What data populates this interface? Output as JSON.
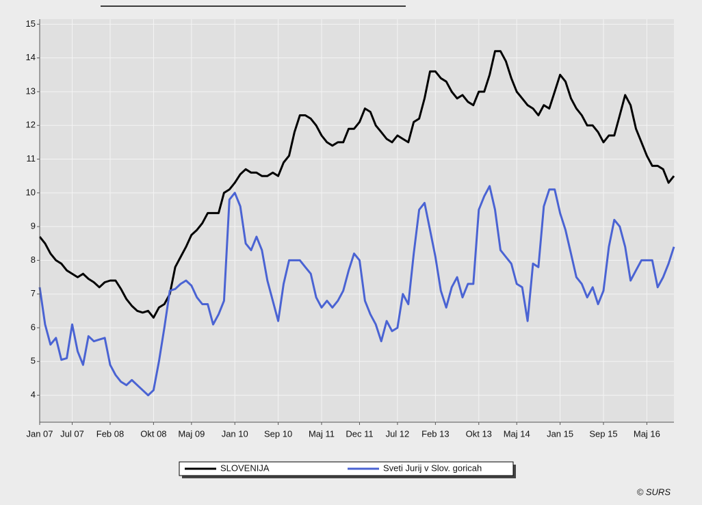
{
  "chart_data": {
    "type": "line",
    "categories": [
      "Jan 07",
      null,
      null,
      null,
      null,
      null,
      "Jul 07",
      null,
      null,
      null,
      null,
      null,
      null,
      "Feb 08",
      null,
      null,
      null,
      null,
      null,
      null,
      null,
      "Okt 08",
      null,
      null,
      null,
      null,
      null,
      null,
      "Maj 09",
      null,
      null,
      null,
      null,
      null,
      null,
      null,
      "Jan 10",
      null,
      null,
      null,
      null,
      null,
      null,
      null,
      "Sep 10",
      null,
      null,
      null,
      null,
      null,
      null,
      null,
      "Maj 11",
      null,
      null,
      null,
      null,
      null,
      null,
      "Dec 11",
      null,
      null,
      null,
      null,
      null,
      null,
      "Jul 12",
      null,
      null,
      null,
      null,
      null,
      null,
      "Feb 13",
      null,
      null,
      null,
      null,
      null,
      null,
      null,
      "Okt 13",
      null,
      null,
      null,
      null,
      null,
      null,
      "Maj 14",
      null,
      null,
      null,
      null,
      null,
      null,
      null,
      "Jan 15",
      null,
      null,
      null,
      null,
      null,
      null,
      null,
      "Sep 15",
      null,
      null,
      null,
      null,
      null,
      null,
      null,
      "Maj 16",
      null,
      null,
      null,
      null,
      null
    ],
    "series": [
      {
        "name": "SLOVENIJA",
        "color": "#000000",
        "values": [
          8.7,
          8.5,
          8.2,
          8.0,
          7.9,
          7.7,
          7.6,
          7.5,
          7.6,
          7.45,
          7.35,
          7.2,
          7.35,
          7.4,
          7.4,
          7.15,
          6.85,
          6.65,
          6.5,
          6.45,
          6.5,
          6.3,
          6.6,
          6.7,
          7.0,
          7.8,
          8.1,
          8.4,
          8.75,
          8.9,
          9.1,
          9.4,
          9.4,
          9.4,
          10.0,
          10.1,
          10.3,
          10.55,
          10.7,
          10.6,
          10.6,
          10.5,
          10.5,
          10.6,
          10.5,
          10.9,
          11.1,
          11.8,
          12.3,
          12.3,
          12.2,
          12.0,
          11.7,
          11.5,
          11.4,
          11.5,
          11.5,
          11.9,
          11.9,
          12.1,
          12.5,
          12.4,
          12.0,
          11.8,
          11.6,
          11.5,
          11.7,
          11.6,
          11.5,
          12.1,
          12.2,
          12.8,
          13.6,
          13.6,
          13.4,
          13.3,
          13.0,
          12.8,
          12.9,
          12.7,
          12.6,
          13.0,
          13.0,
          13.5,
          14.2,
          14.2,
          13.9,
          13.4,
          13.0,
          12.8,
          12.6,
          12.5,
          12.3,
          12.6,
          12.5,
          13.0,
          13.5,
          13.3,
          12.8,
          12.5,
          12.3,
          12.0,
          12.0,
          11.8,
          11.5,
          11.7,
          11.7,
          12.3,
          12.9,
          12.6,
          11.9,
          11.5,
          11.1,
          10.8,
          10.8,
          10.7,
          10.3,
          10.5
        ]
      },
      {
        "name": "Sveti Jurij v Slov. goricah",
        "color": "#4a63d3",
        "values": [
          7.2,
          6.1,
          5.5,
          5.7,
          5.05,
          5.1,
          6.1,
          5.3,
          4.9,
          5.75,
          5.6,
          5.65,
          5.7,
          4.9,
          4.6,
          4.4,
          4.3,
          4.45,
          4.3,
          4.15,
          4.0,
          4.15,
          5.0,
          6.0,
          7.1,
          7.15,
          7.3,
          7.4,
          7.25,
          6.9,
          6.7,
          6.7,
          6.1,
          6.4,
          6.8,
          9.8,
          10.0,
          9.6,
          8.5,
          8.3,
          8.7,
          8.3,
          7.4,
          6.8,
          6.2,
          7.3,
          8.0,
          8.0,
          8.0,
          7.8,
          7.6,
          6.9,
          6.6,
          6.8,
          6.6,
          6.8,
          7.1,
          7.7,
          8.2,
          8.0,
          6.8,
          6.4,
          6.1,
          5.6,
          6.2,
          5.9,
          6.0,
          7.0,
          6.7,
          8.2,
          9.5,
          9.7,
          8.9,
          8.1,
          7.1,
          6.6,
          7.2,
          7.5,
          6.9,
          7.3,
          7.3,
          9.5,
          9.9,
          10.2,
          9.5,
          8.3,
          8.1,
          7.9,
          7.3,
          7.2,
          6.2,
          7.9,
          7.8,
          9.6,
          10.1,
          10.1,
          9.4,
          8.9,
          8.2,
          7.5,
          7.3,
          6.9,
          7.2,
          6.7,
          7.1,
          8.4,
          9.2,
          9.0,
          8.4,
          7.4,
          7.7,
          8.0,
          8.0,
          8.0,
          7.2,
          7.5,
          7.9,
          8.4
        ]
      }
    ],
    "ylim": [
      3.2,
      15.15
    ],
    "yticks": [
      4,
      5,
      6,
      7,
      8,
      9,
      10,
      11,
      12,
      13,
      14,
      15
    ],
    "grid": true,
    "legend": "bottom",
    "source": "© SURS"
  }
}
